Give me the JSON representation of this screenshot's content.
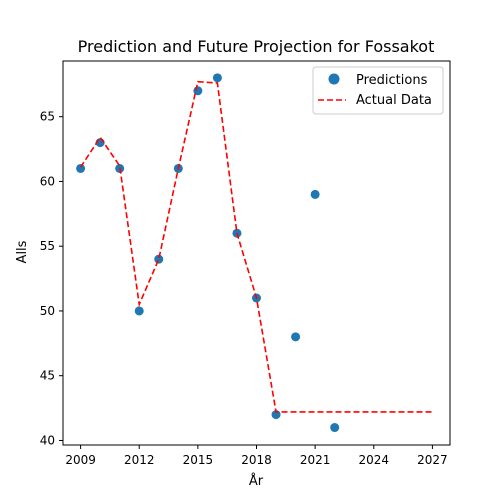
{
  "chart_data": {
    "type": "scatter",
    "title": "Prediction and Future Projection for Fossakot",
    "xlabel": "År",
    "ylabel": "Alls",
    "xlim": [
      2008.1,
      2027.9
    ],
    "ylim": [
      39.65,
      69.3
    ],
    "x_ticks": [
      2009,
      2012,
      2015,
      2018,
      2021,
      2024,
      2027
    ],
    "y_ticks": [
      40,
      45,
      50,
      55,
      60,
      65
    ],
    "grid": false,
    "legend_position": "top-right",
    "series": [
      {
        "name": "Predictions",
        "kind": "scatter",
        "color": "#1f77b4",
        "points": [
          {
            "x": 2009,
            "y": 61
          },
          {
            "x": 2010,
            "y": 63
          },
          {
            "x": 2011,
            "y": 61
          },
          {
            "x": 2012,
            "y": 50
          },
          {
            "x": 2013,
            "y": 54
          },
          {
            "x": 2014,
            "y": 61
          },
          {
            "x": 2015,
            "y": 67
          },
          {
            "x": 2016,
            "y": 68
          },
          {
            "x": 2017,
            "y": 56
          },
          {
            "x": 2018,
            "y": 51
          },
          {
            "x": 2019,
            "y": 42
          },
          {
            "x": 2020,
            "y": 48
          },
          {
            "x": 2021,
            "y": 59
          },
          {
            "x": 2022,
            "y": 41
          }
        ]
      },
      {
        "name": "Actual Data",
        "kind": "line",
        "style": "dashed",
        "color": "#ff0000",
        "points": [
          {
            "x": 2009,
            "y": 61.1
          },
          {
            "x": 2010,
            "y": 63.4
          },
          {
            "x": 2011,
            "y": 61.2
          },
          {
            "x": 2012,
            "y": 50.5
          },
          {
            "x": 2013,
            "y": 54.0
          },
          {
            "x": 2014,
            "y": 61.0
          },
          {
            "x": 2015,
            "y": 67.7
          },
          {
            "x": 2016,
            "y": 67.6
          },
          {
            "x": 2017,
            "y": 56.0
          },
          {
            "x": 2018,
            "y": 51.0
          },
          {
            "x": 2019,
            "y": 42.2
          },
          {
            "x": 2020,
            "y": 42.2
          },
          {
            "x": 2021,
            "y": 42.2
          },
          {
            "x": 2022,
            "y": 42.2
          },
          {
            "x": 2023,
            "y": 42.2
          },
          {
            "x": 2024,
            "y": 42.2
          },
          {
            "x": 2025,
            "y": 42.2
          },
          {
            "x": 2026,
            "y": 42.2
          },
          {
            "x": 2027,
            "y": 42.2
          }
        ]
      }
    ]
  }
}
